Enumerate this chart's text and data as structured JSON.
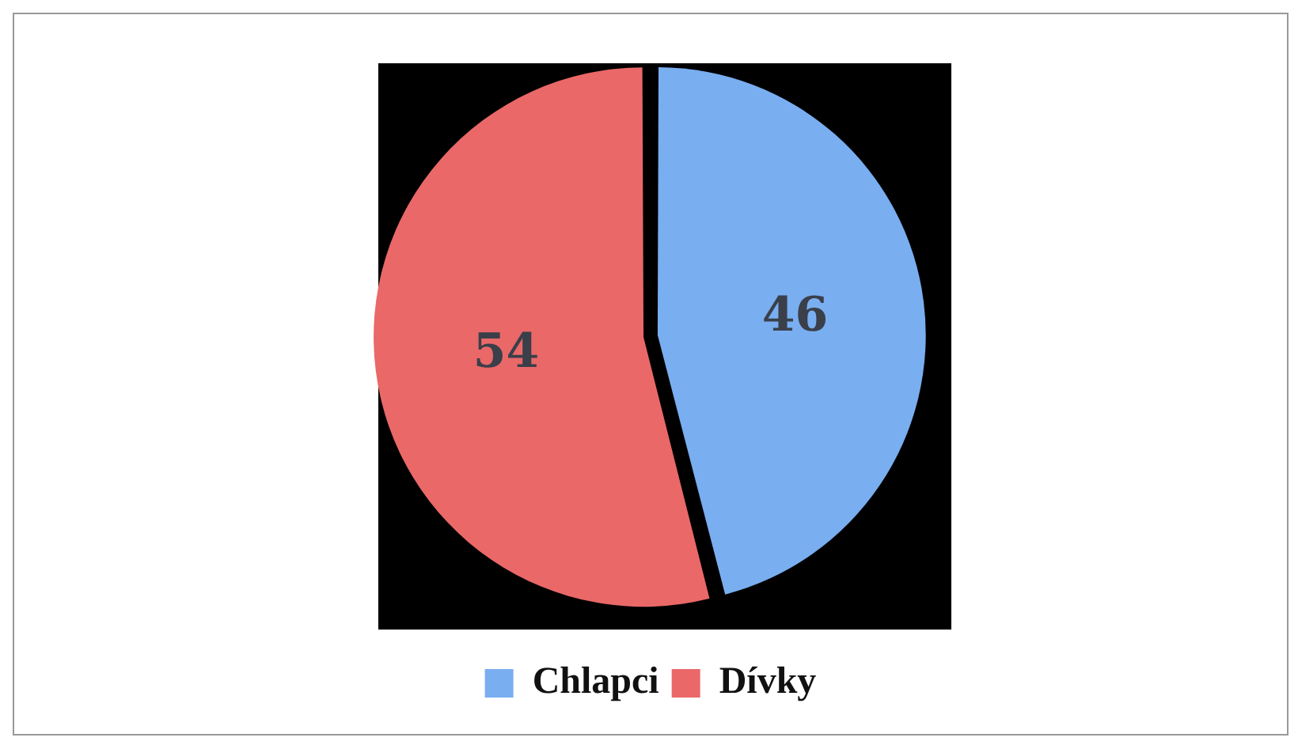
{
  "chart_data": {
    "type": "pie",
    "categories": [
      "Chlapci",
      "Dívky"
    ],
    "values": [
      46,
      54
    ],
    "colors": [
      "#79aef0",
      "#ea6868"
    ],
    "data_labels": true,
    "legend": "bottom"
  }
}
